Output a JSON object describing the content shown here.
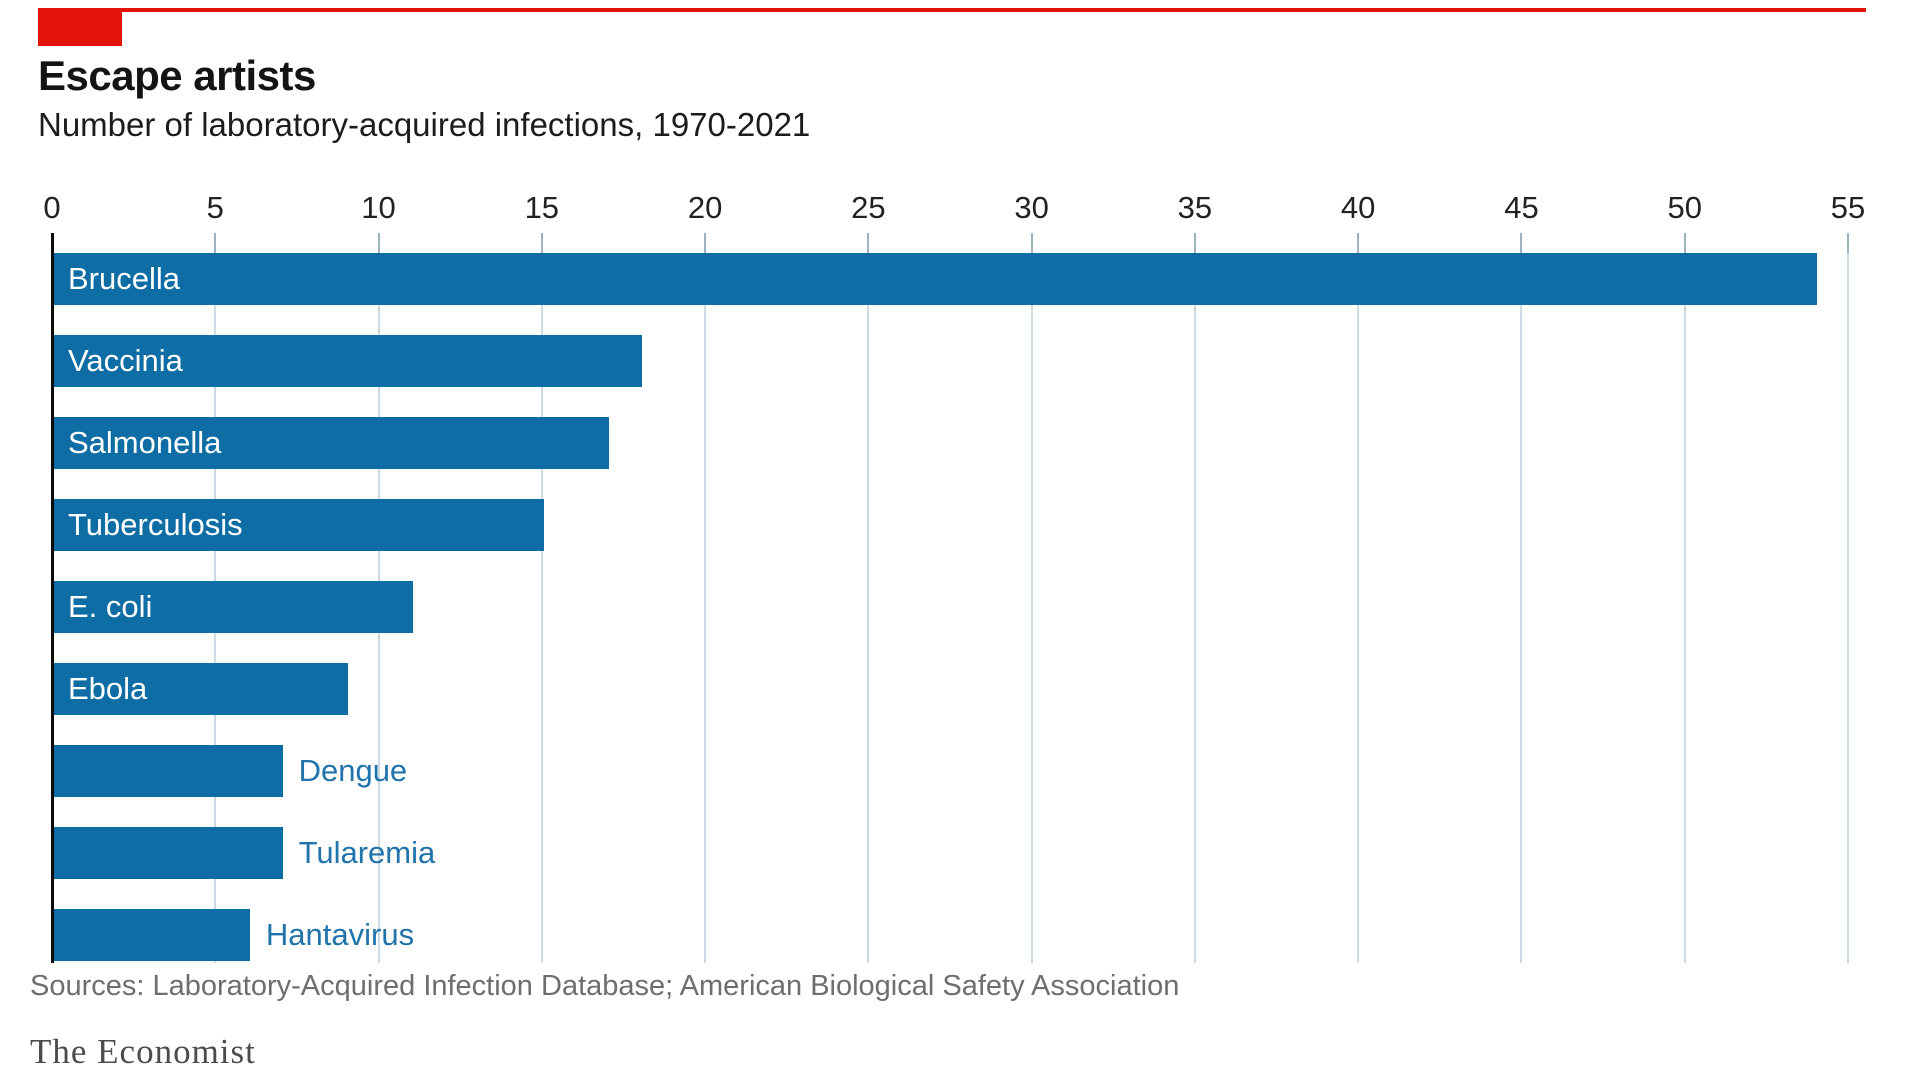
{
  "chart_data": {
    "type": "bar",
    "orientation": "horizontal",
    "title": "Escape artists",
    "subtitle": "Number of laboratory-acquired infections, 1970-2021",
    "categories": [
      "Brucella",
      "Vaccinia",
      "Salmonella",
      "Tuberculosis",
      "E. coli",
      "Ebola",
      "Dengue",
      "Tularemia",
      "Hantavirus"
    ],
    "values": [
      54,
      18,
      17,
      15,
      11,
      9,
      7,
      7,
      6
    ],
    "xlabel": "",
    "ylabel": "",
    "xlim": [
      0,
      55
    ],
    "x_ticks": [
      0,
      5,
      10,
      15,
      20,
      25,
      30,
      35,
      40,
      45,
      50,
      55
    ],
    "grid": "vertical",
    "legend": "none",
    "colors": {
      "bar": "#0e6da4",
      "outside_label": "#2073ab",
      "accent_red": "#e3120b",
      "gridline": "#ccdbe3",
      "tick": "#9db4c0",
      "axis_line": "#0c0c0c"
    }
  },
  "footer": {
    "sources": "Sources: Laboratory-Acquired Infection Database; American Biological Safety Association",
    "brand": "The Economist"
  }
}
